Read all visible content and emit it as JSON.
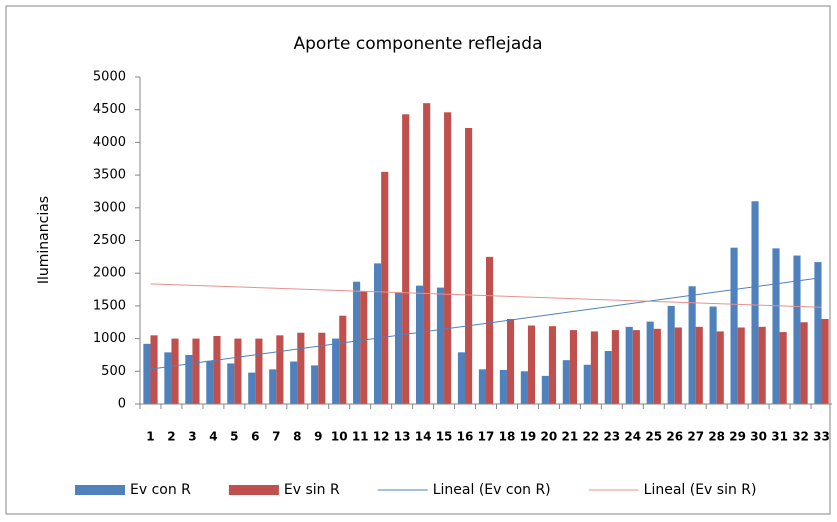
{
  "chart_data": {
    "type": "bar",
    "title": "Aporte componente reflejada",
    "y_label": "Iluminancias",
    "categories": [
      "1",
      "2",
      "3",
      "4",
      "5",
      "6",
      "7",
      "8",
      "9",
      "10",
      "11",
      "12",
      "13",
      "14",
      "15",
      "16",
      "17",
      "18",
      "19",
      "20",
      "21",
      "22",
      "23",
      "24",
      "25",
      "26",
      "27",
      "28",
      "29",
      "30",
      "31",
      "32",
      "33"
    ],
    "series": [
      {
        "name": "Ev con R",
        "color": "#4f81bd",
        "values": [
          920,
          790,
          750,
          660,
          620,
          480,
          530,
          650,
          590,
          1000,
          1870,
          2150,
          1700,
          1810,
          1780,
          790,
          530,
          520,
          500,
          430,
          670,
          600,
          810,
          1180,
          1260,
          1500,
          1800,
          1490,
          2390,
          3100,
          2380,
          2270,
          2170
        ],
        "trendline": {
          "name": "Lineal (Ev con R)",
          "color": "#4f81bd"
        }
      },
      {
        "name": "Ev sin R",
        "color": "#c0504d",
        "values": [
          1050,
          1000,
          1000,
          1040,
          1000,
          1000,
          1050,
          1090,
          1090,
          1350,
          1720,
          3550,
          4430,
          4600,
          4460,
          4220,
          2250,
          1300,
          1200,
          1190,
          1130,
          1110,
          1130,
          1130,
          1150,
          1170,
          1180,
          1110,
          1170,
          1180,
          1100,
          1250,
          1300
        ],
        "trendline": {
          "name": "Lineal (Ev sin R)",
          "color": "#e8908e"
        }
      }
    ],
    "ylim": [
      0,
      5000
    ],
    "yticks": [
      0,
      500,
      1000,
      1500,
      2000,
      2500,
      3000,
      3500,
      4000,
      4500,
      5000
    ],
    "grid": false,
    "legend": "bottom"
  }
}
